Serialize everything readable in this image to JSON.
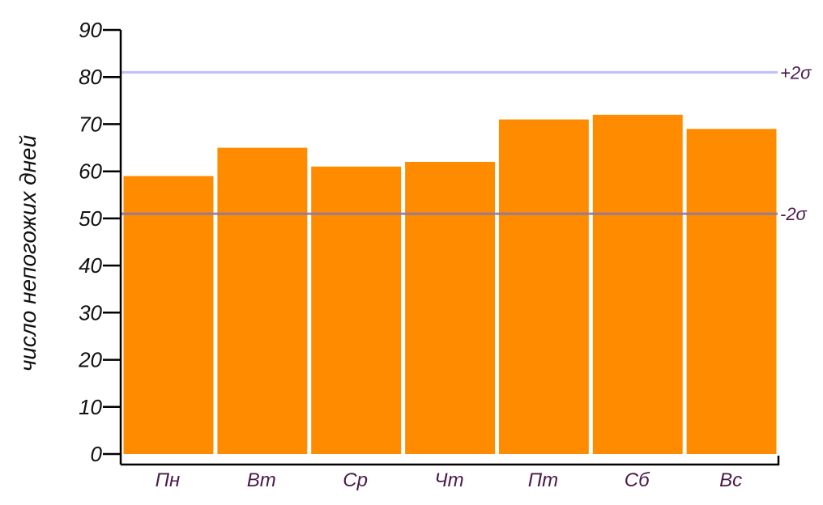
{
  "chart_data": {
    "type": "bar",
    "title": "",
    "xlabel": "",
    "ylabel": "число непогожих дней",
    "categories": [
      "Пн",
      "Вт",
      "Ср",
      "Чт",
      "Пт",
      "Сб",
      "Вс"
    ],
    "values": [
      59,
      65,
      61,
      62,
      71,
      72,
      69
    ],
    "ylim": [
      0,
      90
    ],
    "yticks": [
      0,
      10,
      20,
      30,
      40,
      50,
      60,
      70,
      80,
      90
    ],
    "grid": false,
    "bar_color": "#ff8c00",
    "reference_lines": [
      {
        "label": "+2σ",
        "value": 81,
        "color": "#b8b8ff"
      },
      {
        "label": "-2σ",
        "value": 51,
        "color": "#8a7aa6"
      }
    ]
  }
}
